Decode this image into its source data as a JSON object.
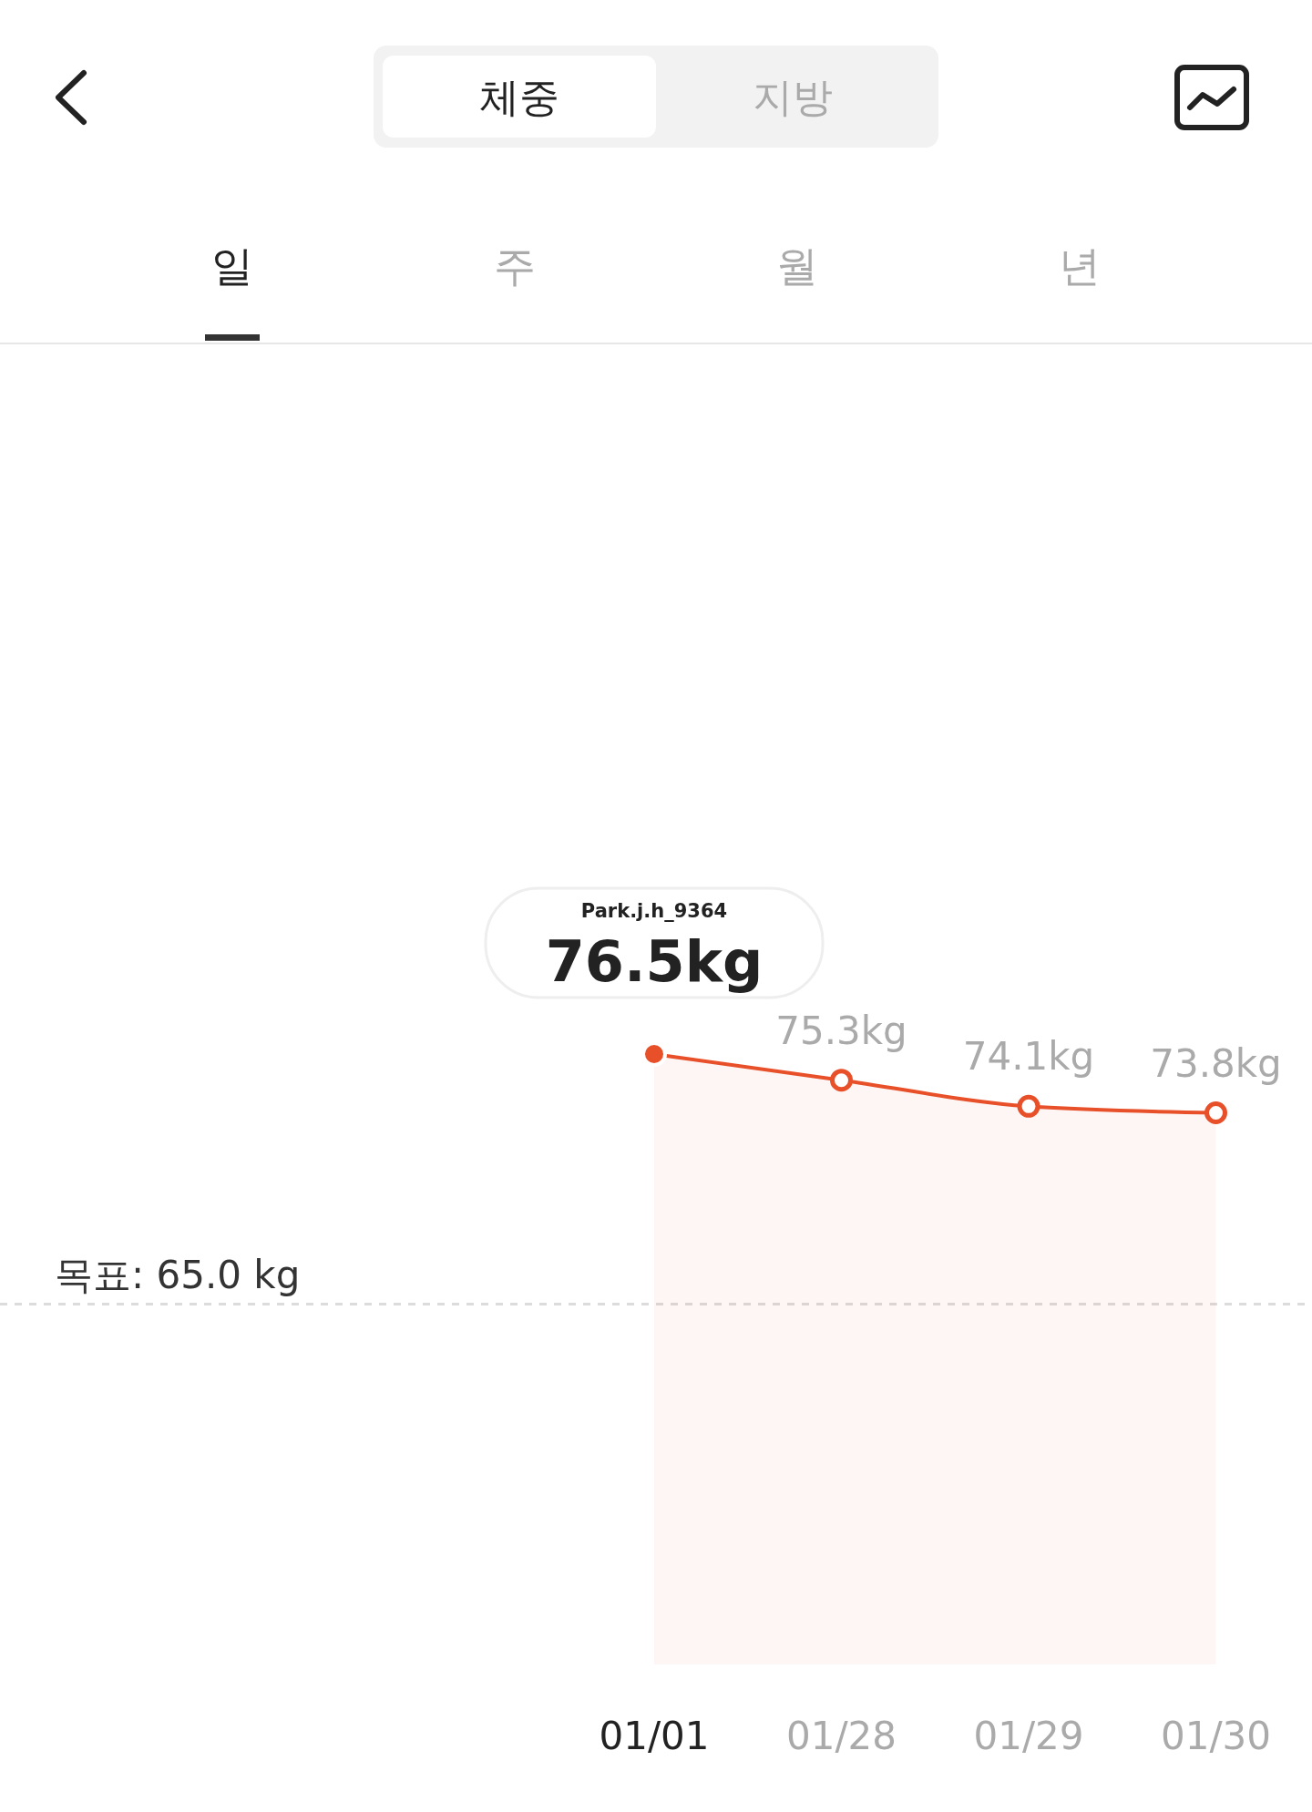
{
  "chart_data": {
    "type": "area",
    "categories": [
      "01/01",
      "01/28",
      "01/29",
      "01/30"
    ],
    "series": [
      {
        "color": "#e8502a",
        "values": [
          76.5,
          75.3,
          74.1,
          73.8
        ],
        "value_labels": [
          "76.5kg",
          "75.3kg",
          "74.1kg",
          "73.8kg"
        ]
      }
    ],
    "ref_lines": [
      {
        "axis": "y",
        "value": 65,
        "label": "목표: 65.0 kg",
        "color": "#dcdcdc",
        "line_style": "dashed"
      }
    ],
    "annotations": [
      "체중",
      "지방",
      "일",
      "주",
      "월",
      "년",
      "Park.j.h_9364"
    ],
    "marker": "circle"
  }
}
